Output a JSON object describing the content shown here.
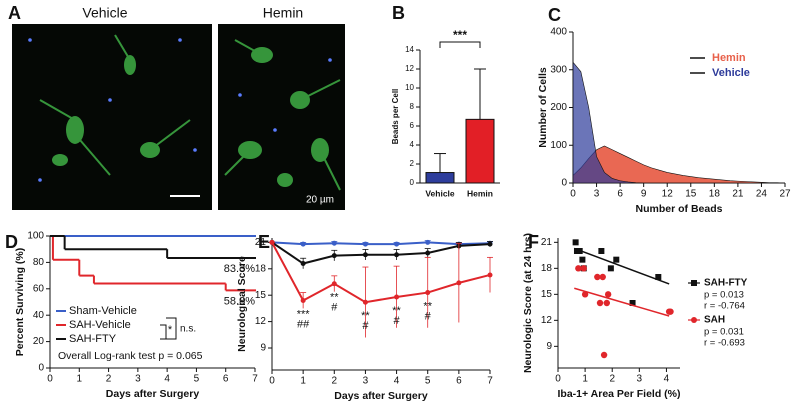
{
  "images": {
    "panel": "A",
    "titles": [
      "Vehicle",
      "Hemin"
    ],
    "scale_bar": "20 µm"
  },
  "chart_data": [
    {
      "panel": "B",
      "type": "bar",
      "ylabel": "Beads per Cell",
      "categories": [
        "Vehicle",
        "Hemin"
      ],
      "values": [
        1.1,
        6.7
      ],
      "errors": [
        2.0,
        5.3
      ],
      "colors": [
        "#2e3d9c",
        "#e21f26"
      ],
      "ylim": [
        0,
        14
      ],
      "yticks": [
        0,
        2,
        4,
        6,
        8,
        10,
        12,
        14
      ],
      "annotation": "***"
    },
    {
      "panel": "C",
      "type": "area",
      "xlabel": "Number of Beads",
      "ylabel": "Number of Cells",
      "x": [
        0,
        1,
        2,
        3,
        4,
        5,
        6,
        7,
        8,
        9,
        10,
        11,
        12,
        13,
        14,
        15,
        16,
        17,
        18,
        19,
        20,
        21,
        22,
        23,
        24,
        25,
        26,
        27
      ],
      "series": [
        {
          "name": "Hemin",
          "color": "#e8604a",
          "values": [
            20,
            40,
            65,
            88,
            98,
            88,
            78,
            68,
            58,
            48,
            40,
            34,
            28,
            24,
            20,
            17,
            14,
            12,
            10,
            8,
            6,
            5,
            4,
            3,
            2,
            1,
            1,
            0
          ]
        },
        {
          "name": "Vehicle",
          "color": "#2c3a9a",
          "values": [
            320,
            295,
            200,
            70,
            28,
            12,
            6,
            3,
            1,
            0,
            0,
            0,
            0,
            0,
            0,
            0,
            0,
            0,
            0,
            0,
            0,
            0,
            0,
            0,
            0,
            0,
            0,
            0
          ]
        }
      ],
      "xlim": [
        0,
        27
      ],
      "xticks": [
        0,
        3,
        6,
        9,
        12,
        15,
        18,
        21,
        24,
        27
      ],
      "ylim": [
        0,
        400
      ],
      "yticks": [
        0,
        100,
        200,
        300,
        400
      ]
    },
    {
      "panel": "D",
      "type": "step",
      "xlabel": "Days after Surgery",
      "ylabel": "Percent Surviving (%)",
      "series": [
        {
          "name": "Sham-Vehicle",
          "color": "#3a5fc8",
          "x": [
            0,
            7
          ],
          "values": [
            100,
            100
          ]
        },
        {
          "name": "SAH-Vehicle",
          "color": "#e0262b",
          "x": [
            0,
            0.1,
            1,
            1.5,
            6,
            7
          ],
          "values": [
            100,
            82,
            70,
            64,
            58.8,
            58.8
          ],
          "end_label": "58.8%"
        },
        {
          "name": "SAH-FTY",
          "color": "#111111",
          "x": [
            0,
            0.5,
            4,
            7
          ],
          "values": [
            100,
            90,
            83.3,
            83.3
          ],
          "end_label": "83.3%"
        }
      ],
      "significance": [
        "*",
        "n.s."
      ],
      "note": "Overall Log-rank test p = 0.065",
      "xlim": [
        0,
        7
      ],
      "xticks": [
        0,
        1,
        2,
        3,
        4,
        5,
        6,
        7
      ],
      "ylim": [
        0,
        100
      ],
      "yticks": [
        0,
        20,
        40,
        60,
        80,
        100
      ]
    },
    {
      "panel": "E",
      "type": "line",
      "xlabel": "Days after Surgery",
      "ylabel": "Neurological Score",
      "x": [
        0,
        1,
        2,
        3,
        4,
        5,
        6,
        7
      ],
      "series": [
        {
          "color": "#3a5fc8",
          "values": [
            21,
            20.8,
            20.9,
            20.8,
            20.8,
            21,
            20.8,
            20.9
          ],
          "errors": [
            0,
            0.2,
            0.2,
            0.2,
            0.2,
            0.2,
            0.2,
            0.2
          ]
        },
        {
          "color": "#111111",
          "values": [
            21,
            18.6,
            19.5,
            19.6,
            19.6,
            19.8,
            20.6,
            20.8
          ],
          "errors": [
            0,
            0.6,
            0.6,
            0.6,
            0.6,
            0.5,
            0.4,
            0.3
          ]
        },
        {
          "color": "#e0262b",
          "values": [
            21,
            14.4,
            16.3,
            14.2,
            14.8,
            15.3,
            16.4,
            17.3
          ],
          "errors": [
            0,
            0.9,
            0.9,
            4,
            3.5,
            4,
            4.5,
            2
          ]
        }
      ],
      "annotations": [
        {
          "x": 1,
          "lines": [
            "***",
            "##"
          ]
        },
        {
          "x": 2,
          "lines": [
            "**",
            "#"
          ]
        },
        {
          "x": 3,
          "lines": [
            "**",
            "#"
          ]
        },
        {
          "x": 4,
          "lines": [
            "**",
            "#"
          ]
        },
        {
          "x": 5,
          "lines": [
            "**",
            "#"
          ]
        }
      ],
      "xlim": [
        0,
        7
      ],
      "xticks": [
        0,
        1,
        2,
        3,
        4,
        5,
        6,
        7
      ],
      "ylim": [
        6.5,
        21.5
      ],
      "yticks": [
        9,
        12,
        15,
        18,
        21
      ]
    },
    {
      "panel": "F",
      "type": "scatter",
      "xlabel": "Iba-1+ Area Per Field (%)",
      "ylabel": "Neurologic Score (at 24 hrs)",
      "series": [
        {
          "name": "SAH-FTY",
          "color": "#111111",
          "marker": "square",
          "x": [
            0.65,
            0.7,
            0.8,
            0.9,
            0.95,
            1.6,
            1.95,
            2.15,
            2.75,
            3.7
          ],
          "values": [
            21,
            20,
            20,
            19,
            18,
            20,
            18,
            19,
            14,
            17
          ],
          "fit_x": [
            0.6,
            4.1
          ],
          "fit_y": [
            20.3,
            16.2
          ],
          "stats": [
            "p = 0.013",
            "r = -0.764"
          ]
        },
        {
          "name": "SAH",
          "color": "#e0262b",
          "marker": "circle",
          "x": [
            0.75,
            0.95,
            1.0,
            1.45,
            1.55,
            1.65,
            1.7,
            1.8,
            1.85,
            4.1,
            4.15
          ],
          "values": [
            18,
            18,
            15,
            17,
            14,
            17,
            8,
            14,
            15,
            13,
            13
          ],
          "fit_x": [
            0.6,
            4.1
          ],
          "fit_y": [
            15.7,
            12.5
          ],
          "stats": [
            "p = 0.031",
            "r = -0.693"
          ]
        }
      ],
      "xlim": [
        0,
        4.5
      ],
      "xticks": [
        0,
        1,
        2,
        3,
        4
      ],
      "ylim": [
        6.5,
        21.5
      ],
      "yticks": [
        9,
        12,
        15,
        18,
        21
      ]
    }
  ]
}
